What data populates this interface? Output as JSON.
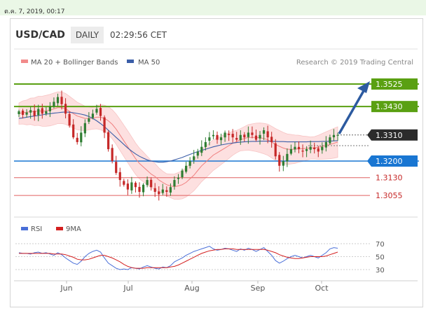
{
  "timestamp": "ต.ค. 7, 2019, 00:17",
  "header": {
    "pair": "USD/CAD",
    "timeframe": "DAILY",
    "time": "02:29:56 CET"
  },
  "legend": {
    "bollinger": "MA 20 + Bollinger Bands",
    "ma50": "MA 50",
    "rsi": "RSI",
    "rsi_ma": "9MA"
  },
  "research_credit": "Research © 2019 Trading Central",
  "colors": {
    "bull": "#2e7d32",
    "bear": "#c62828",
    "green_level": "#5aa012",
    "blue_level": "#1976d2",
    "red_level": "#e06060",
    "band_fill": "#fde0e0",
    "ma20": "#f08080",
    "ma50": "#3b5ea8",
    "rsi": "#4a6fd8",
    "rsi_ma": "#d42020"
  },
  "chart_data": [
    {
      "type": "candlestick",
      "title": "USD/CAD DAILY",
      "x_tick_labels": [
        "Jun",
        "Jul",
        "Aug",
        "Sep",
        "Oct"
      ],
      "levels": [
        {
          "value": 1.3525,
          "label": "1.3525",
          "kind": "resistance"
        },
        {
          "value": 1.343,
          "label": "1.3430",
          "kind": "resistance"
        },
        {
          "value": 1.331,
          "label": "1.3310",
          "kind": "current"
        },
        {
          "value": 1.32,
          "label": "1.3200",
          "kind": "pivot"
        },
        {
          "value": 1.313,
          "label": "1.3130",
          "kind": "support"
        },
        {
          "value": 1.3055,
          "label": "1.3055",
          "kind": "support"
        }
      ],
      "closes": [
        1.341,
        1.3395,
        1.3405,
        1.3415,
        1.339,
        1.342,
        1.34,
        1.341,
        1.343,
        1.345,
        1.347,
        1.344,
        1.34,
        1.335,
        1.33,
        1.328,
        1.332,
        1.336,
        1.338,
        1.34,
        1.342,
        1.339,
        1.332,
        1.325,
        1.32,
        1.315,
        1.312,
        1.31,
        1.308,
        1.311,
        1.309,
        1.307,
        1.31,
        1.312,
        1.309,
        1.307,
        1.306,
        1.308,
        1.307,
        1.309,
        1.312,
        1.313,
        1.316,
        1.318,
        1.32,
        1.322,
        1.324,
        1.326,
        1.328,
        1.33,
        1.331,
        1.329,
        1.33,
        1.332,
        1.331,
        1.33,
        1.329,
        1.331,
        1.33,
        1.332,
        1.331,
        1.329,
        1.331,
        1.333,
        1.33,
        1.328,
        1.322,
        1.318,
        1.32,
        1.323,
        1.325,
        1.326,
        1.325,
        1.324,
        1.325,
        1.326,
        1.325,
        1.324,
        1.326,
        1.328,
        1.33,
        1.331,
        1.331
      ],
      "ma20": [
        1.34,
        1.3405,
        1.3405,
        1.341,
        1.3408,
        1.3412,
        1.341,
        1.3412,
        1.3415,
        1.342,
        1.3425,
        1.3425,
        1.342,
        1.341,
        1.34,
        1.339,
        1.3385,
        1.338,
        1.338,
        1.338,
        1.3385,
        1.3385,
        1.338,
        1.337,
        1.3355,
        1.3335,
        1.331,
        1.3285,
        1.326,
        1.3235,
        1.321,
        1.319,
        1.3175,
        1.316,
        1.3145,
        1.3135,
        1.312,
        1.311,
        1.31,
        1.3095,
        1.3092,
        1.3095,
        1.31,
        1.311,
        1.3125,
        1.314,
        1.316,
        1.318,
        1.3195,
        1.321,
        1.3225,
        1.3235,
        1.3245,
        1.3255,
        1.3265,
        1.3275,
        1.3282,
        1.329,
        1.3295,
        1.33,
        1.33,
        1.33,
        1.3298,
        1.3295,
        1.329,
        1.328,
        1.327,
        1.3262,
        1.3255,
        1.325,
        1.325,
        1.325,
        1.3252,
        1.3252,
        1.3254,
        1.3255,
        1.3256,
        1.3258,
        1.3262,
        1.3266,
        1.327,
        1.3275,
        1.328
      ],
      "ma50": [
        1.338,
        1.3382,
        1.3385,
        1.3388,
        1.339,
        1.3392,
        1.3395,
        1.3398,
        1.34,
        1.3402,
        1.3404,
        1.3406,
        1.3407,
        1.3406,
        1.3404,
        1.3401,
        1.3398,
        1.3394,
        1.3388,
        1.338,
        1.337,
        1.3358,
        1.3345,
        1.333,
        1.3315,
        1.33,
        1.3285,
        1.327,
        1.3255,
        1.3242,
        1.323,
        1.322,
        1.3212,
        1.3205,
        1.32,
        1.3197,
        1.3195,
        1.3195,
        1.3197,
        1.32,
        1.3205,
        1.321,
        1.3215,
        1.3222,
        1.3228,
        1.3234,
        1.324,
        1.3245,
        1.325,
        1.3255,
        1.326,
        1.3264,
        1.3268,
        1.3271,
        1.3274,
        1.3276,
        1.3278,
        1.328,
        1.3281,
        1.3282,
        1.3283,
        1.3283,
        1.3284,
        1.3284,
        1.3284,
        1.3283,
        1.3283,
        1.3282,
        1.3282,
        1.3281,
        1.3281,
        1.3281,
        1.3281,
        1.3281,
        1.3281,
        1.3282,
        1.3282,
        1.3282,
        1.3283,
        1.3283,
        1.3284,
        1.3285,
        1.3286
      ]
    },
    {
      "type": "line",
      "title": "RSI",
      "y_ticks": [
        30,
        50,
        70
      ],
      "rsi": [
        56,
        55,
        55,
        54,
        56,
        57,
        55,
        56,
        54,
        52,
        56,
        53,
        48,
        44,
        40,
        38,
        43,
        50,
        55,
        58,
        60,
        57,
        48,
        40,
        36,
        32,
        30,
        31,
        30,
        33,
        32,
        31,
        34,
        36,
        34,
        32,
        31,
        34,
        33,
        36,
        42,
        45,
        48,
        52,
        55,
        58,
        60,
        62,
        64,
        66,
        62,
        60,
        61,
        63,
        62,
        60,
        58,
        62,
        60,
        63,
        61,
        58,
        61,
        64,
        58,
        52,
        44,
        40,
        43,
        47,
        50,
        52,
        50,
        48,
        50,
        52,
        50,
        48,
        52,
        56,
        62,
        64,
        63
      ],
      "ma9": [
        55,
        55,
        55,
        55,
        55,
        55,
        55,
        55,
        55,
        54,
        54,
        54,
        53,
        51,
        49,
        46,
        45,
        45,
        46,
        48,
        50,
        52,
        52,
        50,
        48,
        45,
        42,
        38,
        35,
        33,
        32,
        32,
        32,
        33,
        33,
        33,
        33,
        33,
        33,
        34,
        35,
        37,
        40,
        43,
        46,
        49,
        52,
        55,
        57,
        59,
        60,
        61,
        61,
        62,
        62,
        62,
        61,
        61,
        61,
        61,
        61,
        61,
        61,
        61,
        60,
        58,
        56,
        53,
        51,
        49,
        48,
        47,
        47,
        48,
        49,
        50,
        50,
        50,
        50,
        51,
        53,
        55,
        57
      ]
    }
  ]
}
